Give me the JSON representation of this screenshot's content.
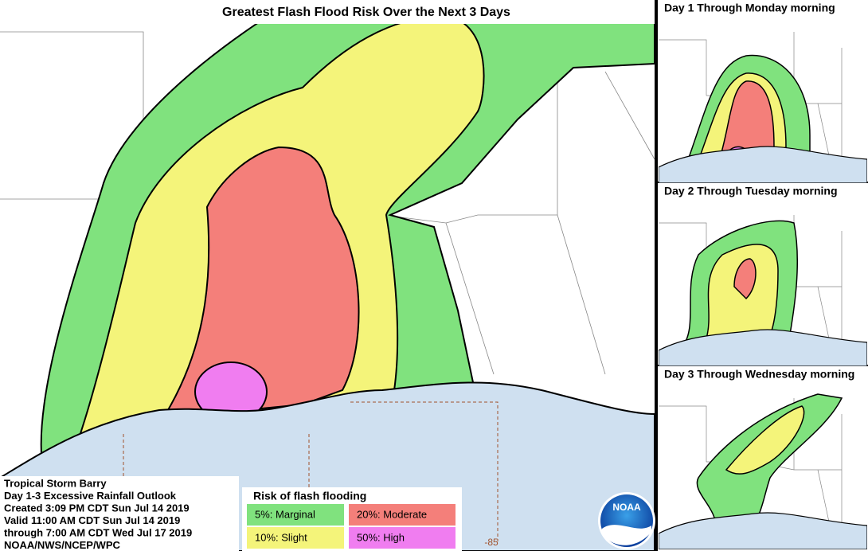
{
  "header": {
    "title": "Greatest Flash Flood Risk Over the Next 3 Days"
  },
  "panels": [
    {
      "title": "Day 1 Through Monday morning"
    },
    {
      "title": "Day 2 Through Tuesday morning"
    },
    {
      "title": "Day 3 Through Wednesday morning"
    }
  ],
  "info": {
    "lines": [
      "Tropical Storm Barry",
      "Day 1-3 Excessive Rainfall Outlook",
      "Created 3:09 PM CDT Sun Jul 14 2019",
      "Valid 11:00 AM CDT Sun Jul 14 2019",
      "through 7:00 AM CDT Wed Jul 17 2019",
      "NOAA/NWS/NCEP/WPC"
    ]
  },
  "legend": {
    "title": "Risk of flash flooding",
    "items": [
      {
        "label": "5%: Marginal",
        "color": "#80e27e"
      },
      {
        "label": "20%: Moderate",
        "color": "#f47f7a"
      },
      {
        "label": "10%: Slight",
        "color": "#f4f47a"
      },
      {
        "label": "50%: High",
        "color": "#f07df0"
      }
    ]
  },
  "logo": {
    "text": "NOAA"
  },
  "map_labels": {
    "longitude": "-85"
  }
}
